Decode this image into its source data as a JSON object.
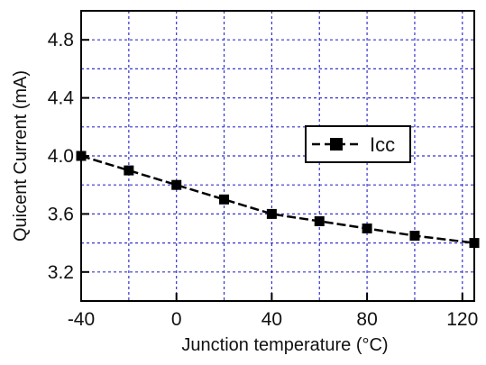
{
  "chart_data": {
    "type": "line",
    "title": "",
    "xlabel": "Junction temperature (°C)",
    "ylabel": "Quicent Current (mA)",
    "xlim": [
      -40,
      125
    ],
    "ylim": [
      3.0,
      5.0
    ],
    "x_ticks": [
      -40,
      0,
      40,
      80,
      120
    ],
    "x_tick_labels": [
      "-40",
      "0",
      "40",
      "80",
      "120"
    ],
    "y_ticks": [
      3.2,
      3.6,
      4.0,
      4.4,
      4.8
    ],
    "y_tick_labels": [
      "3.2",
      "3.6",
      "4.0",
      "4.4",
      "4.8"
    ],
    "grid": true,
    "grid_x": [
      -20,
      0,
      20,
      40,
      60,
      80,
      100,
      120
    ],
    "grid_y": [
      3.2,
      3.4,
      3.6,
      3.8,
      4.0,
      4.2,
      4.4,
      4.6,
      4.8
    ],
    "legend_position": "right",
    "series": [
      {
        "name": "Icc",
        "color": "#000000",
        "marker": "square",
        "line_style": "dashed",
        "x": [
          -40,
          -20,
          0,
          20,
          40,
          60,
          80,
          100,
          125
        ],
        "y": [
          4.0,
          3.9,
          3.8,
          3.7,
          3.6,
          3.55,
          3.5,
          3.45,
          3.4
        ]
      }
    ]
  },
  "colors": {
    "grid": "#3333cc",
    "axis": "#000000",
    "background": "#ffffff"
  }
}
